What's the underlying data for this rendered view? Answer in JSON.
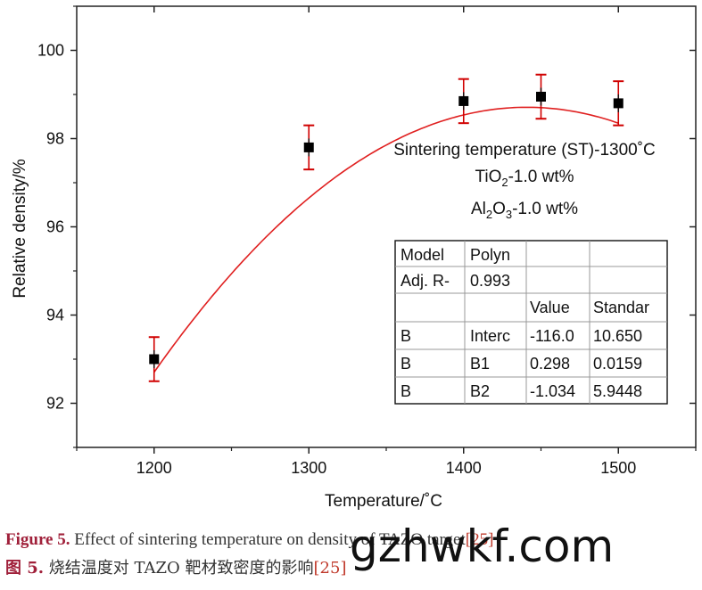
{
  "chart_data": {
    "type": "scatter",
    "xlabel": "Temperature/˚C",
    "ylabel": "Relative density/%",
    "xlim": [
      1150,
      1550
    ],
    "ylim": [
      91,
      101
    ],
    "xticks": [
      1200,
      1300,
      1400,
      1500
    ],
    "yticks": [
      92,
      94,
      96,
      98,
      100
    ],
    "grid": false,
    "series": [
      {
        "points": [
          {
            "x": 1200,
            "y": 93.0,
            "err": 0.5
          },
          {
            "x": 1300,
            "y": 97.8,
            "err": 0.5
          },
          {
            "x": 1400,
            "y": 98.85,
            "err": 0.5
          },
          {
            "x": 1450,
            "y": 98.95,
            "err": 0.5
          },
          {
            "x": 1500,
            "y": 98.8,
            "err": 0.5
          }
        ],
        "marker_color": "#000000",
        "error_bar_color": "#d00000"
      }
    ],
    "fit": {
      "type": "polynomial",
      "intercept": -116.0,
      "b1": 0.298,
      "b2": -1.034,
      "b2_scale": 0.0001,
      "color": "#e02020"
    },
    "annotation": {
      "line1": "Sintering temperature (ST)-1300˚C",
      "line2": {
        "a": "TiO",
        "sub": "2",
        "b": "-1.0 wt%"
      },
      "line3": {
        "a": "Al",
        "sub1": "2",
        "b": "O",
        "sub2": "3",
        "c": "-1.0 wt%"
      }
    },
    "fit_table": {
      "rows": [
        [
          "Model",
          "Polyn",
          "",
          ""
        ],
        [
          "Adj. R-",
          "0.993",
          "",
          ""
        ],
        [
          "",
          "",
          "Value",
          "Standar"
        ],
        [
          "B",
          "Interc",
          "-116.0",
          "10.650"
        ],
        [
          "B",
          "B1",
          "0.298",
          "0.0159"
        ],
        [
          "B",
          "B2",
          "-1.034",
          "5.9448"
        ]
      ]
    }
  },
  "caption": {
    "en_label": "Figure 5.",
    "en_text": " Effect of sintering temperature on density of TAZO target",
    "en_ref": "[25]",
    "cn_label": "图 5.",
    "cn_text": "  烧结温度对 TAZO 靶材致密度的影响",
    "cn_ref": "[25]"
  },
  "watermark": "gzhwkf.com"
}
